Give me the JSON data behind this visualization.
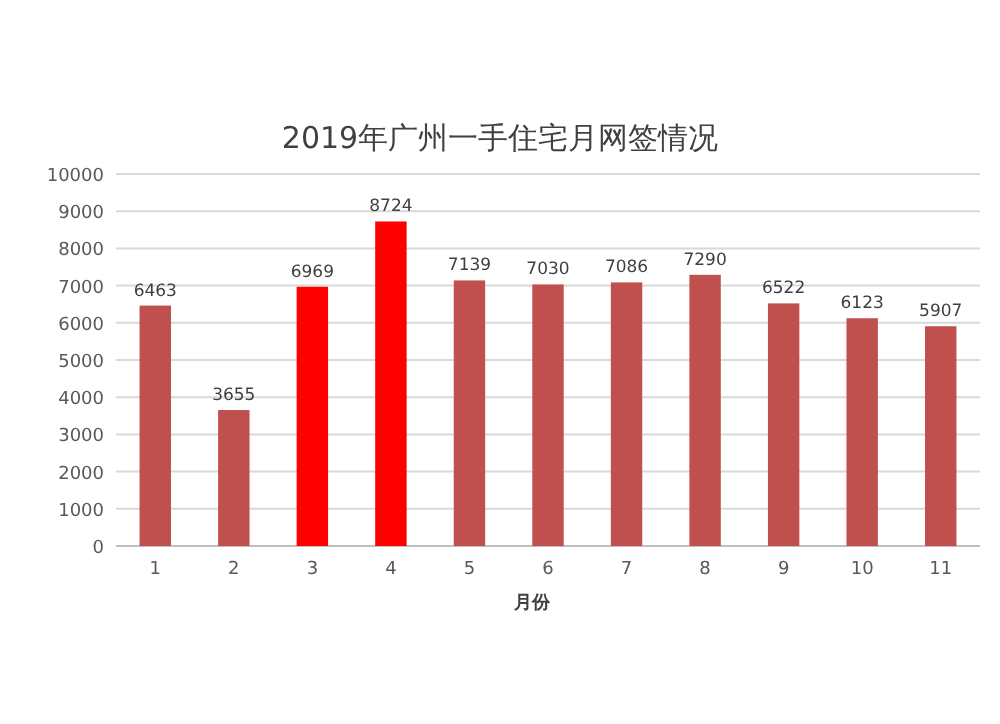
{
  "chart_data": {
    "type": "bar",
    "title": "2019年广州一手住宅月网签情况",
    "xlabel": "月份",
    "categories": [
      "1",
      "2",
      "3",
      "4",
      "5",
      "6",
      "7",
      "8",
      "9",
      "10",
      "11"
    ],
    "values": [
      6463,
      3655,
      6969,
      8724,
      7139,
      7030,
      7086,
      7290,
      6522,
      6123,
      5907
    ],
    "colors": [
      "#c0504d",
      "#c0504d",
      "#ff0000",
      "#ff0000",
      "#c0504d",
      "#c0504d",
      "#c0504d",
      "#c0504d",
      "#c0504d",
      "#c0504d",
      "#c0504d"
    ],
    "ylim": [
      0,
      10000
    ],
    "yticks": [
      0,
      1000,
      2000,
      3000,
      4000,
      5000,
      6000,
      7000,
      8000,
      9000,
      10000
    ],
    "grid": "y",
    "data_labels": true
  }
}
